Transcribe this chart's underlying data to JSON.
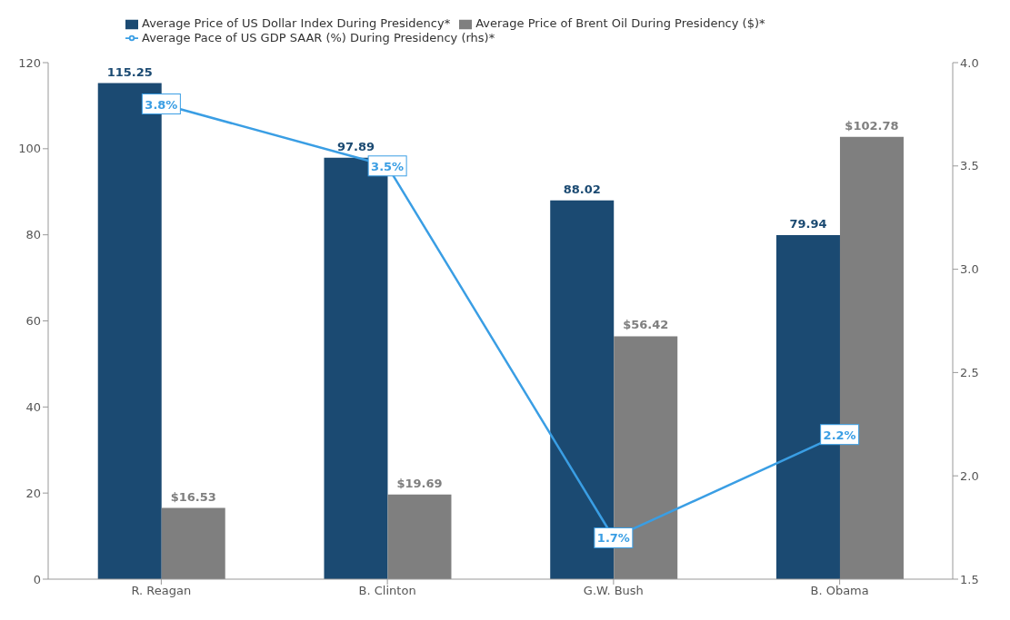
{
  "chart_data": {
    "type": "bar",
    "categories": [
      "R. Reagan",
      "B. Clinton",
      "G.W. Bush",
      "B. Obama"
    ],
    "series": [
      {
        "name": "Average Price of US Dollar Index During Presidency*",
        "color": "#1b4a72",
        "values": [
          115.25,
          97.89,
          88.02,
          79.94
        ],
        "value_labels": [
          "115.25",
          "97.89",
          "88.02",
          "79.94"
        ]
      },
      {
        "name": "Average Price of Brent Oil During Presidency ($)*",
        "color": "#7f7f7f",
        "values": [
          16.53,
          19.69,
          56.42,
          102.78
        ],
        "value_labels": [
          "$16.53",
          "$19.69",
          "$56.42",
          "$102.78"
        ]
      },
      {
        "name": "Average Pace of US GDP SAAR (%) During Presidency (rhs)*",
        "type": "line",
        "axis": "y2",
        "marker": "square",
        "color": "#3a9ee4",
        "values": [
          3.8,
          3.5,
          1.7,
          2.2
        ],
        "value_labels": [
          "3.8%",
          "3.5%",
          "1.7%",
          "2.2%"
        ]
      }
    ],
    "ylim": [
      0,
      120
    ],
    "yticks": [
      0,
      20,
      40,
      60,
      80,
      100,
      120
    ],
    "y2lim": [
      1.5,
      4.0
    ],
    "y2ticks": [
      1.5,
      {
        "value": 2,
        "label": "2.0"
      },
      2.5,
      {
        "value": 3,
        "label": "3.0"
      },
      3.5,
      {
        "value": 4,
        "label": "4.0"
      }
    ],
    "legend": "top left",
    "grid": false,
    "line_style": "solid"
  }
}
